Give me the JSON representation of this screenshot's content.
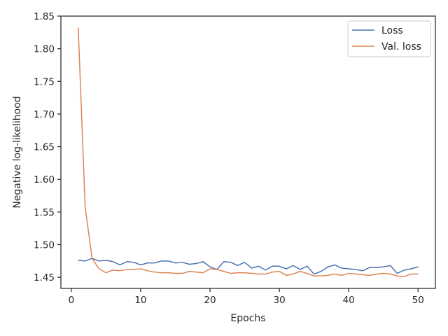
{
  "chart_data": {
    "type": "line",
    "title": "",
    "xlabel": "Epochs",
    "ylabel": "Negative log-likelihood",
    "xlim": [
      -1.5,
      52.5
    ],
    "ylim": [
      1.433,
      1.85
    ],
    "xticks": [
      0,
      10,
      20,
      30,
      40,
      50
    ],
    "xtick_labels": [
      "0",
      "10",
      "20",
      "30",
      "40",
      "50"
    ],
    "yticks": [
      1.45,
      1.5,
      1.55,
      1.6,
      1.65,
      1.7,
      1.75,
      1.8,
      1.85
    ],
    "ytick_labels": [
      "1.45",
      "1.50",
      "1.55",
      "1.60",
      "1.65",
      "1.70",
      "1.75",
      "1.80",
      "1.85"
    ],
    "grid": false,
    "legend_position": "top-right",
    "x": [
      1,
      2,
      3,
      4,
      5,
      6,
      7,
      8,
      9,
      10,
      11,
      12,
      13,
      14,
      15,
      16,
      17,
      18,
      19,
      20,
      21,
      22,
      23,
      24,
      25,
      26,
      27,
      28,
      29,
      30,
      31,
      32,
      33,
      34,
      35,
      36,
      37,
      38,
      39,
      40,
      41,
      42,
      43,
      44,
      45,
      46,
      47,
      48,
      49,
      50
    ],
    "series": [
      {
        "name": "Loss",
        "color": "#4c72b0",
        "values": [
          1.476,
          1.475,
          1.479,
          1.475,
          1.476,
          1.474,
          1.469,
          1.474,
          1.473,
          1.469,
          1.472,
          1.472,
          1.475,
          1.475,
          1.472,
          1.473,
          1.47,
          1.471,
          1.474,
          1.466,
          1.462,
          1.474,
          1.473,
          1.468,
          1.473,
          1.464,
          1.467,
          1.461,
          1.467,
          1.467,
          1.463,
          1.468,
          1.462,
          1.467,
          1.455,
          1.459,
          1.466,
          1.469,
          1.464,
          1.463,
          1.462,
          1.46,
          1.465,
          1.465,
          1.466,
          1.468,
          1.456,
          1.461,
          1.463,
          1.466
        ]
      },
      {
        "name": "Val. loss",
        "color": "#dd8452",
        "values": [
          1.832,
          1.557,
          1.479,
          1.463,
          1.457,
          1.461,
          1.46,
          1.462,
          1.462,
          1.463,
          1.46,
          1.458,
          1.457,
          1.457,
          1.456,
          1.456,
          1.459,
          1.458,
          1.457,
          1.463,
          1.462,
          1.459,
          1.456,
          1.457,
          1.457,
          1.456,
          1.455,
          1.455,
          1.458,
          1.459,
          1.453,
          1.455,
          1.459,
          1.456,
          1.452,
          1.452,
          1.453,
          1.455,
          1.453,
          1.456,
          1.455,
          1.454,
          1.453,
          1.455,
          1.456,
          1.455,
          1.452,
          1.451,
          1.455,
          1.455
        ]
      }
    ]
  }
}
